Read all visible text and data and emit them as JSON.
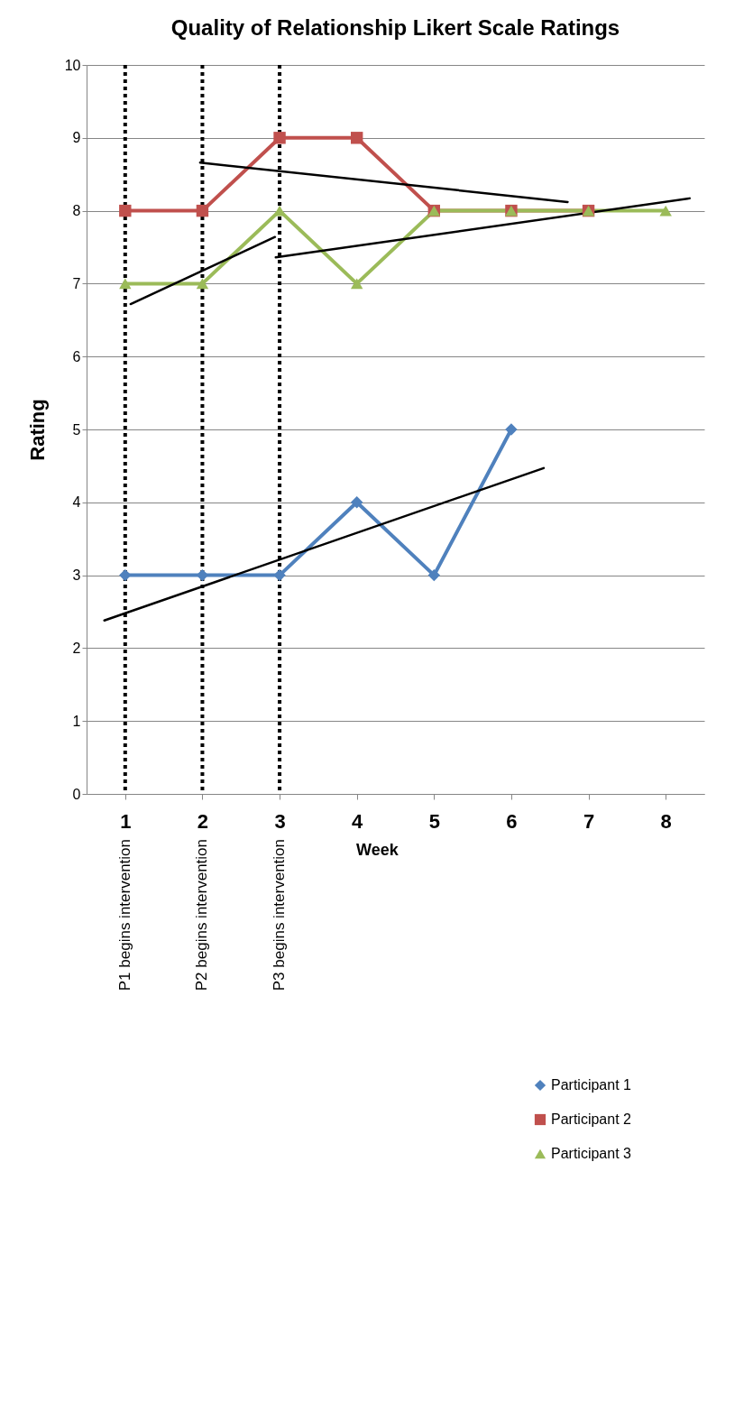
{
  "chart_data": {
    "type": "line",
    "title": "Quality of Relationship Likert Scale Ratings",
    "xlabel": "Week",
    "ylabel": "Rating",
    "x": [
      1,
      2,
      3,
      4,
      5,
      6,
      7,
      8
    ],
    "xlim": [
      0.5,
      8.5
    ],
    "xticks": [
      1,
      2,
      3,
      4,
      5,
      6,
      7,
      8
    ],
    "ylim": [
      0,
      10
    ],
    "yticks": [
      0,
      1,
      2,
      3,
      4,
      5,
      6,
      7,
      8,
      9,
      10
    ],
    "grid": "y",
    "legend": "bottom right",
    "series": [
      {
        "name": "Participant 1",
        "color": "#4f81bd",
        "marker": "diamond",
        "values": [
          3,
          3,
          3,
          4,
          3,
          5,
          null,
          null
        ]
      },
      {
        "name": "Participant 2",
        "color": "#c0504d",
        "marker": "square",
        "values": [
          8,
          8,
          9,
          9,
          8,
          8,
          8,
          null
        ]
      },
      {
        "name": "Participant 3",
        "color": "#9bbb59",
        "marker": "triangle",
        "values": [
          7,
          7,
          8,
          7,
          8,
          8,
          8,
          8
        ]
      },
      {
        "type": "line",
        "color": "#000000",
        "marker": "none",
        "x": [
          0.73,
          6.42
        ],
        "values": [
          2.38,
          4.47
        ]
      },
      {
        "type": "line",
        "color": "#000000",
        "marker": "none",
        "x": [
          1.97,
          6.73
        ],
        "values": [
          8.66,
          8.12
        ]
      },
      {
        "type": "line",
        "color": "#000000",
        "marker": "none",
        "x": [
          1.07,
          2.94
        ],
        "values": [
          6.72,
          7.64
        ]
      },
      {
        "type": "line",
        "color": "#000000",
        "marker": "none",
        "x": [
          2.95,
          8.31
        ],
        "values": [
          7.36,
          8.17
        ]
      }
    ],
    "ref_lines": [
      {
        "axis": "x",
        "value": 1,
        "label": "P1 begins intervention",
        "color": "#000000",
        "line_style": "dotted"
      },
      {
        "axis": "x",
        "value": 2,
        "label": "P2 begins intervention",
        "color": "#000000",
        "line_style": "dotted"
      },
      {
        "axis": "x",
        "value": 3,
        "label": "P3 begins intervention",
        "color": "#000000",
        "line_style": "dotted"
      }
    ]
  }
}
